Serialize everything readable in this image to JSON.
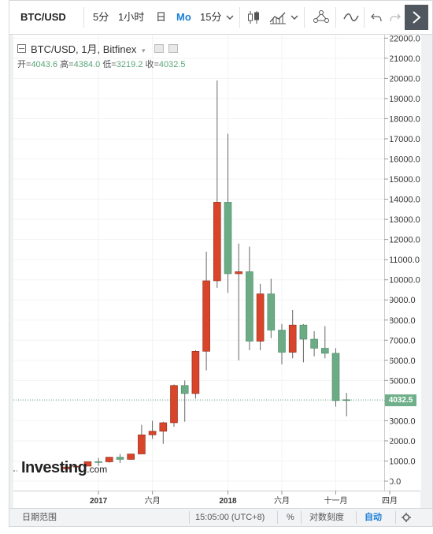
{
  "toolbar": {
    "symbol": "BTC/USD",
    "timeframes": [
      "5分",
      "1小时",
      "日",
      "Mo",
      "15分"
    ],
    "active_timeframe": "Mo",
    "icons": [
      "chevron-down-icon",
      "candlestick-icon",
      "area-chart-icon",
      "chevron-down-icon",
      "indicators-icon",
      "drawing-icon",
      "undo-icon",
      "redo-icon",
      "expand-icon"
    ]
  },
  "legend": {
    "title": "BTC/USD, 1月, Bitfinex",
    "open_label": "开=",
    "open": "4043.6",
    "high_label": "高=",
    "high": "4384.0",
    "low_label": "低=",
    "low": "3219.2",
    "close_label": "收=",
    "close": "4032.5"
  },
  "last_price_label": "4032.5",
  "logo": {
    "brand": "Investing",
    "suffix": ".com"
  },
  "bottom_bar": {
    "date_range": "日期范围",
    "time": "15:05:00 (UTC+8)",
    "percent": "%",
    "log_scale": "对数刻度",
    "auto": "自动",
    "settings_icon": "gear-icon"
  },
  "colors": {
    "up": "#d8452b",
    "down": "#6bab85",
    "accent": "#1a7fd6"
  },
  "chart_data": {
    "type": "candlestick",
    "title": "BTC/USD, 1月, Bitfinex",
    "interval": "monthly",
    "y_ticks": [
      0,
      1000,
      2000,
      3000,
      4000,
      5000,
      6000,
      7000,
      8000,
      9000,
      10000,
      11000,
      12000,
      13000,
      14000,
      15000,
      16000,
      17000,
      18000,
      19000,
      20000,
      21000,
      22000
    ],
    "y_tick_labels": [
      "0.0",
      "1000.0",
      "2000.0",
      "3000.0",
      "4000.0",
      "5000.0",
      "6000.0",
      "7000.0",
      "8000.0",
      "9000.0",
      "10000.0",
      "11000.0",
      "12000.0",
      "13000.0",
      "14000.0",
      "15000.0",
      "16000.0",
      "17000.0",
      "18000.0",
      "19000.0",
      "20000.0",
      "21000.0",
      "22000.0"
    ],
    "ylim": [
      -600,
      22300
    ],
    "x_ticks": [
      {
        "label": "2017",
        "month": "2017-01"
      },
      {
        "label": "六月",
        "month": "2017-06"
      },
      {
        "label": "2018",
        "month": "2018-01"
      },
      {
        "label": "六月",
        "month": "2018-06"
      },
      {
        "label": "十一月",
        "month": "2018-11"
      },
      {
        "label": "四月",
        "month": "2019-04"
      }
    ],
    "last_price": 4032.5,
    "candles": [
      {
        "month": "2016-10",
        "o": 610,
        "h": 720,
        "l": 600,
        "c": 700
      },
      {
        "month": "2016-11",
        "o": 700,
        "h": 750,
        "l": 690,
        "c": 740
      },
      {
        "month": "2016-12",
        "o": 745,
        "h": 980,
        "l": 740,
        "c": 965
      },
      {
        "month": "2017-01",
        "o": 965,
        "h": 1150,
        "l": 760,
        "c": 960
      },
      {
        "month": "2017-02",
        "o": 960,
        "h": 1200,
        "l": 920,
        "c": 1190
      },
      {
        "month": "2017-03",
        "o": 1190,
        "h": 1350,
        "l": 900,
        "c": 1080
      },
      {
        "month": "2017-04",
        "o": 1080,
        "h": 1360,
        "l": 1070,
        "c": 1350
      },
      {
        "month": "2017-05",
        "o": 1350,
        "h": 2800,
        "l": 1350,
        "c": 2300
      },
      {
        "month": "2017-06",
        "o": 2300,
        "h": 3000,
        "l": 2100,
        "c": 2480
      },
      {
        "month": "2017-07",
        "o": 2480,
        "h": 2950,
        "l": 1850,
        "c": 2900
      },
      {
        "month": "2017-08",
        "o": 2900,
        "h": 4800,
        "l": 2700,
        "c": 4750
      },
      {
        "month": "2017-09",
        "o": 4750,
        "h": 5000,
        "l": 2950,
        "c": 4350
      },
      {
        "month": "2017-10",
        "o": 4350,
        "h": 6500,
        "l": 4100,
        "c": 6450
      },
      {
        "month": "2017-11",
        "o": 6450,
        "h": 11400,
        "l": 5500,
        "c": 9950
      },
      {
        "month": "2017-12",
        "o": 9950,
        "h": 19900,
        "l": 9600,
        "c": 13850
      },
      {
        "month": "2018-01",
        "o": 13850,
        "h": 17250,
        "l": 9350,
        "c": 10300
      },
      {
        "month": "2018-02",
        "o": 10300,
        "h": 11800,
        "l": 6000,
        "c": 10400
      },
      {
        "month": "2018-03",
        "o": 10400,
        "h": 11650,
        "l": 6500,
        "c": 6950
      },
      {
        "month": "2018-04",
        "o": 6950,
        "h": 9800,
        "l": 6500,
        "c": 9300
      },
      {
        "month": "2018-05",
        "o": 9300,
        "h": 10050,
        "l": 7100,
        "c": 7500
      },
      {
        "month": "2018-06",
        "o": 7500,
        "h": 7800,
        "l": 5800,
        "c": 6400
      },
      {
        "month": "2018-07",
        "o": 6400,
        "h": 8500,
        "l": 6100,
        "c": 7750
      },
      {
        "month": "2018-08",
        "o": 7750,
        "h": 7800,
        "l": 5900,
        "c": 7050
      },
      {
        "month": "2018-09",
        "o": 7050,
        "h": 7450,
        "l": 6200,
        "c": 6600
      },
      {
        "month": "2018-10",
        "o": 6600,
        "h": 7700,
        "l": 6100,
        "c": 6350
      },
      {
        "month": "2018-11",
        "o": 6350,
        "h": 6600,
        "l": 3700,
        "c": 4000
      },
      {
        "month": "2018-12",
        "o": 4043.6,
        "h": 4384.0,
        "l": 3219.2,
        "c": 4032.5
      }
    ]
  }
}
